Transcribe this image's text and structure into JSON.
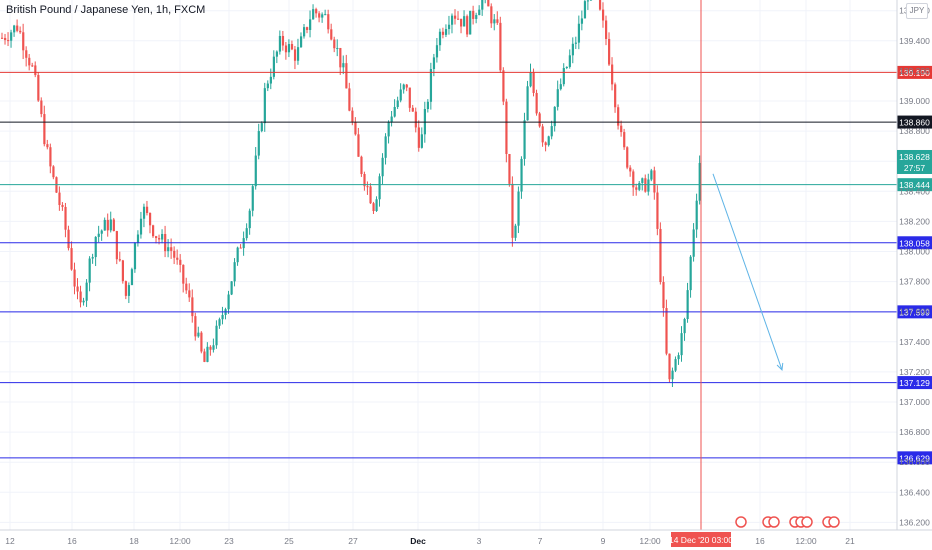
{
  "symbol": {
    "title": "British Pound / Japanese Yen, 1h, FXCM",
    "currency": "JPY"
  },
  "price_axis": {
    "tick_labels": [
      "139.600",
      "139.400",
      "139.200",
      "139.000",
      "138.800",
      "138.600",
      "138.400",
      "138.200",
      "138.000",
      "137.800",
      "137.600",
      "137.400",
      "137.200",
      "137.000",
      "136.800",
      "136.600",
      "136.400",
      "136.200"
    ],
    "tick_values": [
      139.6,
      139.4,
      139.2,
      139.0,
      138.8,
      138.6,
      138.4,
      138.2,
      138.0,
      137.8,
      137.6,
      137.4,
      137.2,
      137.0,
      136.8,
      136.6,
      136.4,
      136.2
    ]
  },
  "time_axis": {
    "labels": [
      "12",
      "16",
      "18",
      "12:00",
      "23",
      "25",
      "27",
      "Dec",
      "3",
      "7",
      "9",
      "12:00",
      "16",
      "12:00",
      "21"
    ],
    "bold_labels": [
      "Dec"
    ],
    "cursor_label": "14 Dec '20   03:00"
  },
  "levels": [
    {
      "value": 139.19,
      "label": "139.190",
      "color": "#e53935"
    },
    {
      "value": 138.86,
      "label": "138.860",
      "color": "#131722"
    },
    {
      "value": 138.444,
      "label": "138.444",
      "color": "#26a69a"
    },
    {
      "value": 138.058,
      "label": "138.058",
      "color": "#2a2ae8"
    },
    {
      "value": 137.599,
      "label": "137.599",
      "color": "#2a2ae8"
    },
    {
      "value": 137.129,
      "label": "137.129",
      "color": "#2a2ae8"
    },
    {
      "value": 136.629,
      "label": "136.629",
      "color": "#2a2ae8"
    }
  ],
  "last_price": {
    "label": "138.628",
    "countdown": "27:57",
    "color": "#26a69a"
  },
  "colors": {
    "up": "#26a69a",
    "down": "#ef5350",
    "grid": "#f0f3fa",
    "axis_text": "#787b86",
    "arrow": "#5fb4e6",
    "cursor": "#ef5350"
  },
  "chart_data": {
    "type": "candlestick",
    "title": "British Pound / Japanese Yen, 1h, FXCM",
    "y_range": [
      136.05,
      139.75
    ],
    "x_tick_labels": [
      "12",
      "16",
      "18",
      "12:00",
      "23",
      "25",
      "27",
      "Dec",
      "3",
      "7",
      "9",
      "12:00",
      "16",
      "12:00",
      "21"
    ],
    "horizontal_levels": [
      139.19,
      138.86,
      138.444,
      138.058,
      137.599,
      137.129,
      136.629
    ],
    "last_price": 138.628,
    "price_path": [
      139.42,
      139.5,
      139.2,
      138.6,
      138.2,
      137.6,
      138.1,
      138.2,
      137.7,
      138.3,
      138.1,
      138.0,
      137.7,
      137.25,
      137.5,
      137.9,
      138.3,
      139.1,
      139.4,
      139.3,
      139.6,
      139.55,
      139.2,
      138.6,
      138.3,
      138.9,
      139.1,
      138.7,
      139.4,
      139.6,
      139.5,
      139.7,
      139.45,
      138.0,
      139.2,
      138.7,
      139.1,
      139.4,
      139.8,
      139.4,
      138.7,
      138.4,
      138.5,
      137.1,
      137.5,
      138.6
    ],
    "projection": {
      "from": 138.45,
      "to": 137.2
    }
  }
}
